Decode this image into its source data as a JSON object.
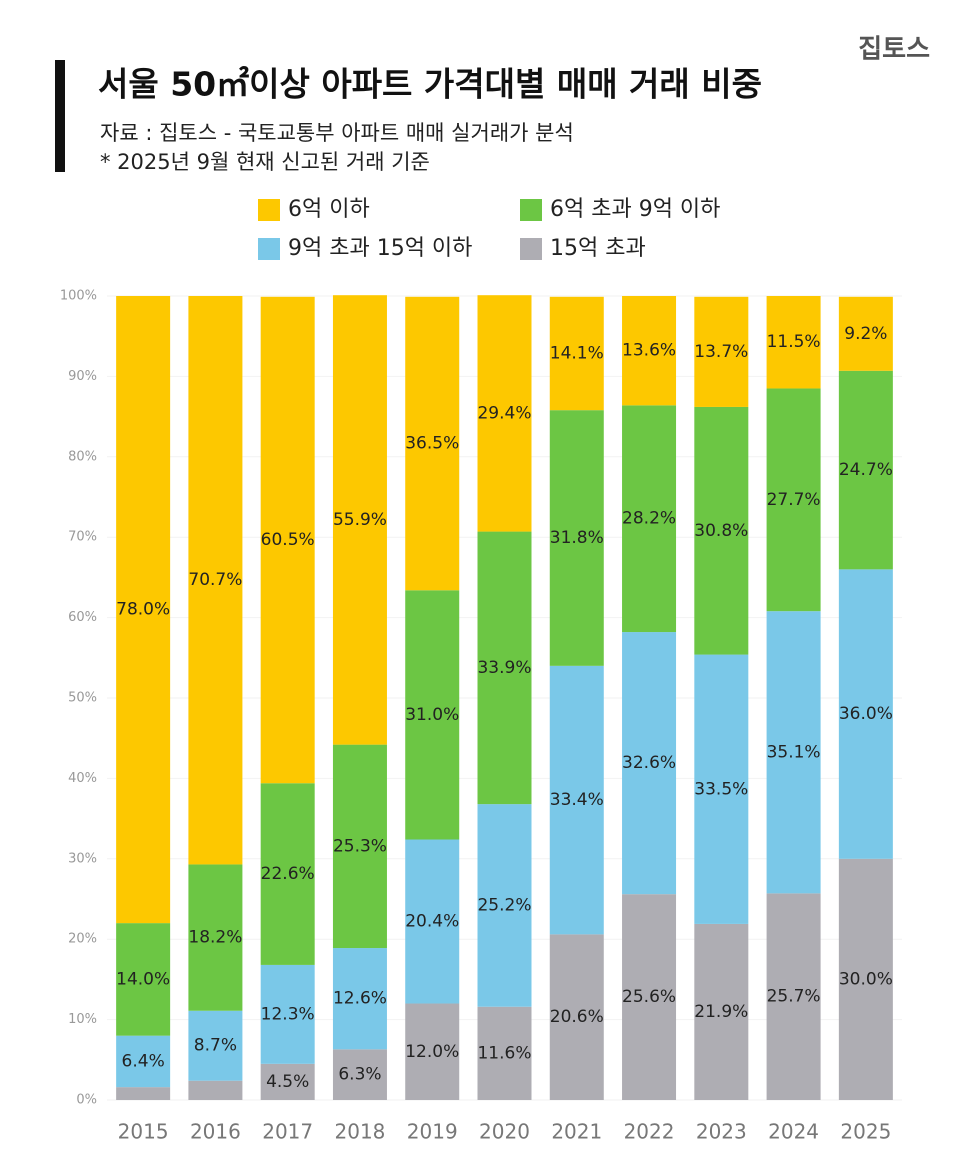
{
  "chart_data": {
    "type": "stacked_bar",
    "brand": "집토스",
    "title": "서울 50㎡이상 아파트 가격대별 매매 거래 비중",
    "subtitle": [
      "자료 : 집토스 - 국토교통부 아파트 매매 실거래가 분석",
      "* 2025년 9월 현재 신고된 거래 기준"
    ],
    "categories": [
      "2015",
      "2016",
      "2017",
      "2018",
      "2019",
      "2020",
      "2021",
      "2022",
      "2023",
      "2024",
      "2025"
    ],
    "series": [
      {
        "name": "6억 이하",
        "color": "#fdc800",
        "values": [
          78.0,
          70.7,
          60.5,
          55.9,
          36.5,
          29.4,
          14.1,
          13.6,
          13.7,
          11.5,
          9.2
        ],
        "value_labels": [
          "78.0%",
          "70.7%",
          "60.5%",
          "55.9%",
          "36.5%",
          "29.4%",
          "14.1%",
          "13.6%",
          "13.7%",
          "11.5%",
          "9.2%"
        ]
      },
      {
        "name": "6억 초과 9억 이하",
        "color": "#6cc644",
        "values": [
          14.0,
          18.2,
          22.6,
          25.3,
          31.0,
          33.9,
          31.8,
          28.2,
          30.8,
          27.7,
          24.7
        ],
        "value_labels": [
          "14.0%",
          "18.2%",
          "22.6%",
          "25.3%",
          "31.0%",
          "33.9%",
          "31.8%",
          "28.2%",
          "30.8%",
          "27.7%",
          "24.7%"
        ]
      },
      {
        "name": "9억 초과 15억 이하",
        "color": "#7ac8e8",
        "values": [
          6.4,
          8.7,
          12.3,
          12.6,
          20.4,
          25.2,
          33.4,
          32.6,
          33.5,
          35.1,
          36.0
        ],
        "value_labels": [
          "6.4%",
          "8.7%",
          "12.3%",
          "12.6%",
          "20.4%",
          "25.2%",
          "33.4%",
          "32.6%",
          "33.5%",
          "35.1%",
          "36.0%"
        ]
      },
      {
        "name": "15억 초과",
        "color": "#aeadb3",
        "values": [
          1.6,
          2.4,
          4.5,
          6.3,
          12.0,
          11.6,
          20.6,
          25.6,
          21.9,
          25.7,
          30.0
        ],
        "value_labels": [
          null,
          null,
          "4.5%",
          "6.3%",
          "12.0%",
          "11.6%",
          "20.6%",
          "25.6%",
          "21.9%",
          "25.7%",
          "30.0%"
        ]
      }
    ],
    "ylim": [
      0,
      100
    ],
    "yticks": [
      {
        "value": 0,
        "label": "0%"
      },
      {
        "value": 10,
        "label": "10%"
      },
      {
        "value": 20,
        "label": "20%"
      },
      {
        "value": 30,
        "label": "30%"
      },
      {
        "value": 40,
        "label": "40%"
      },
      {
        "value": 50,
        "label": "50%"
      },
      {
        "value": 60,
        "label": "60%"
      },
      {
        "value": 70,
        "label": "70%"
      },
      {
        "value": 80,
        "label": "80%"
      },
      {
        "value": 90,
        "label": "90%"
      },
      {
        "value": 100,
        "label": "100%"
      }
    ],
    "grid": true
  }
}
